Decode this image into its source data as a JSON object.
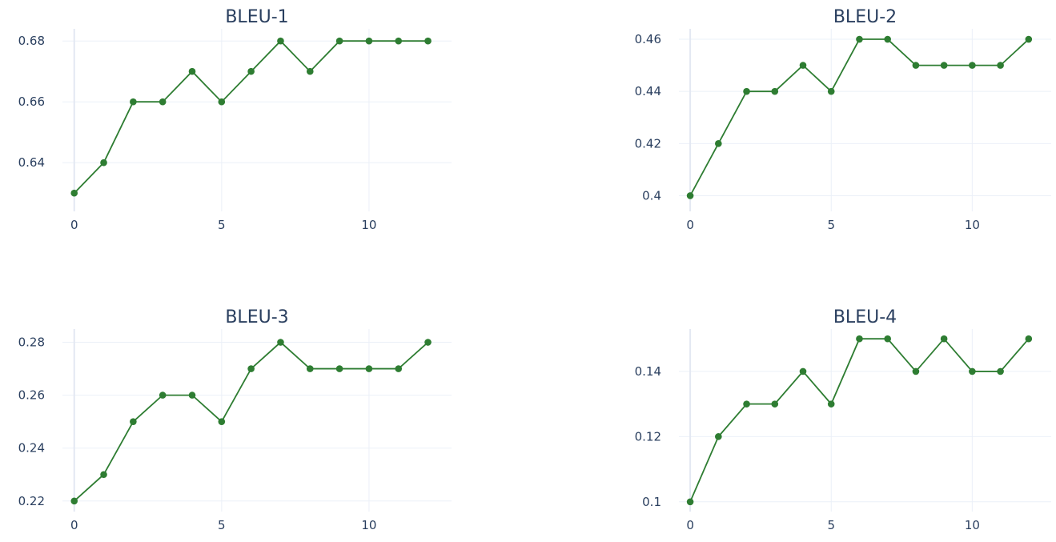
{
  "chart_data": [
    {
      "type": "line",
      "title": "BLEU-1",
      "x": [
        0,
        1,
        2,
        3,
        4,
        5,
        6,
        7,
        8,
        9,
        10,
        11,
        12
      ],
      "series": [
        {
          "values": [
            0.63,
            0.64,
            0.66,
            0.66,
            0.67,
            0.66,
            0.67,
            0.68,
            0.67,
            0.68,
            0.68,
            0.68,
            0.68
          ]
        }
      ],
      "xticks": [
        0,
        5,
        10
      ],
      "xtick_labels": [
        "0",
        "5",
        "10"
      ],
      "yticks": [
        0.64,
        0.66,
        0.68
      ],
      "ytick_labels": [
        "0.64",
        "0.66",
        "0.68"
      ],
      "xlim": [
        -0.4,
        12.8
      ],
      "ylim": [
        0.624,
        0.684
      ],
      "color": "#2e7d32",
      "grid": true
    },
    {
      "type": "line",
      "title": "BLEU-2",
      "x": [
        0,
        1,
        2,
        3,
        4,
        5,
        6,
        7,
        8,
        9,
        10,
        11,
        12
      ],
      "series": [
        {
          "values": [
            0.4,
            0.42,
            0.44,
            0.44,
            0.45,
            0.44,
            0.46,
            0.46,
            0.45,
            0.45,
            0.45,
            0.45,
            0.46
          ]
        }
      ],
      "xticks": [
        0,
        5,
        10
      ],
      "xtick_labels": [
        "0",
        "5",
        "10"
      ],
      "yticks": [
        0.4,
        0.42,
        0.44,
        0.46
      ],
      "ytick_labels": [
        "0.4",
        "0.42",
        "0.44",
        "0.46"
      ],
      "xlim": [
        -0.4,
        12.8
      ],
      "ylim": [
        0.394,
        0.464
      ],
      "color": "#2e7d32",
      "grid": true
    },
    {
      "type": "line",
      "title": "BLEU-3",
      "x": [
        0,
        1,
        2,
        3,
        4,
        5,
        6,
        7,
        8,
        9,
        10,
        11,
        12
      ],
      "series": [
        {
          "values": [
            0.22,
            0.23,
            0.25,
            0.26,
            0.26,
            0.25,
            0.27,
            0.28,
            0.27,
            0.27,
            0.27,
            0.27,
            0.28
          ]
        }
      ],
      "xticks": [
        0,
        5,
        10
      ],
      "xtick_labels": [
        "0",
        "5",
        "10"
      ],
      "yticks": [
        0.22,
        0.24,
        0.26,
        0.28
      ],
      "ytick_labels": [
        "0.22",
        "0.24",
        "0.26",
        "0.28"
      ],
      "xlim": [
        -0.4,
        12.8
      ],
      "ylim": [
        0.216,
        0.285
      ],
      "color": "#2e7d32",
      "grid": true
    },
    {
      "type": "line",
      "title": "BLEU-4",
      "x": [
        0,
        1,
        2,
        3,
        4,
        5,
        6,
        7,
        8,
        9,
        10,
        11,
        12
      ],
      "series": [
        {
          "values": [
            0.1,
            0.12,
            0.13,
            0.13,
            0.14,
            0.13,
            0.15,
            0.15,
            0.14,
            0.15,
            0.14,
            0.14,
            0.15
          ]
        }
      ],
      "xticks": [
        0,
        5,
        10
      ],
      "xtick_labels": [
        "0",
        "5",
        "10"
      ],
      "yticks": [
        0.1,
        0.12,
        0.14
      ],
      "ytick_labels": [
        "0.1",
        "0.12",
        "0.14"
      ],
      "xlim": [
        -0.4,
        12.8
      ],
      "ylim": [
        0.097,
        0.153
      ],
      "color": "#2e7d32",
      "grid": true
    }
  ]
}
